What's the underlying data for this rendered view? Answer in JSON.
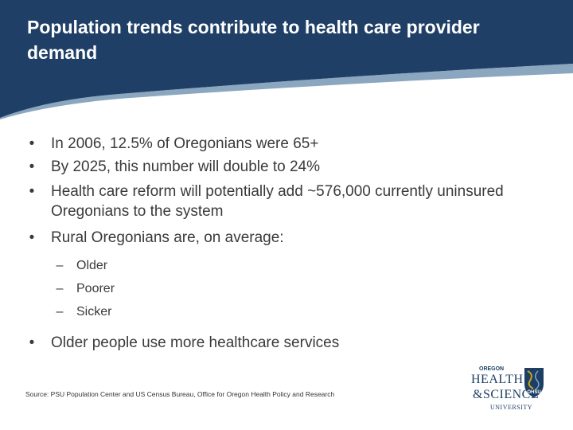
{
  "slide": {
    "title": "Population trends contribute to health care provider demand",
    "bullets": [
      "In 2006, 12.5% of Oregonians were 65+",
      "By 2025, this number will double to 24%",
      "Health care reform will potentially add ~576,000 currently uninsured Oregonians to the system",
      "Rural Oregonians are, on average:"
    ],
    "sub_bullets": [
      "Older",
      "Poorer",
      "Sicker"
    ],
    "last_bullet": "Older people use more healthcare services",
    "bullet_char": "•",
    "dash_char": "–",
    "source": "Source: PSU Population Center and US Census Bureau, Office for Oregon Health Policy and Research"
  },
  "logo": {
    "line1": "OREGON",
    "line2": "HEALTH",
    "line3": "&SCIENCE",
    "line4": "UNIVERSITY",
    "badge": "OHSU"
  },
  "colors": {
    "header_navy": "#1f3f66",
    "header_swoosh": "#3d6a95",
    "text": "#3a3a3a",
    "logo_blue": "#1e3f64",
    "logo_gold": "#c9a227"
  }
}
